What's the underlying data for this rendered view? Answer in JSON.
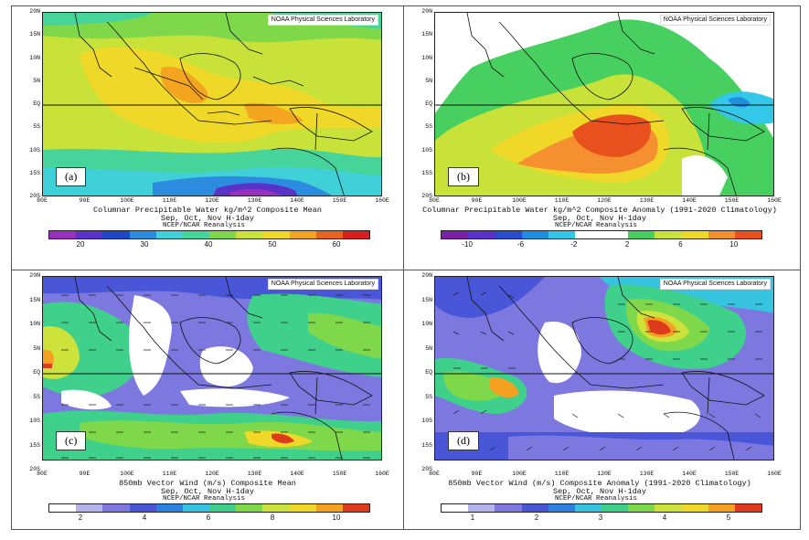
{
  "lat_labels": [
    "20N",
    "15N",
    "10N",
    "5N",
    "EQ",
    "5S",
    "10S",
    "15S",
    "20S"
  ],
  "lon_labels": [
    "80E",
    "90E",
    "100E",
    "110E",
    "120E",
    "130E",
    "140E",
    "150E",
    "160E"
  ],
  "source_text": "NOAA Physical Sciences Laboratory",
  "reanalysis_text": "NCEP/NCAR Reanalysis",
  "panels": [
    {
      "label": "(a)",
      "title1": "Columnar Precipitable Water kg/m^2 Composite Mean",
      "title2": "Sep, Oct, Nov H-1day",
      "ticks": [
        "20",
        "30",
        "40",
        "50",
        "60"
      ],
      "colors": [
        "#9b2fbf",
        "#5a32c8",
        "#2246c8",
        "#2c8de0",
        "#3fd0d8",
        "#46d49a",
        "#7fd84a",
        "#c8e23a",
        "#f0d828",
        "#f4a520",
        "#e8641e",
        "#d81e1e"
      ]
    },
    {
      "label": "(b)",
      "title1": "Columnar Precipitable Water kg/m^2 Composite Anomaly (1991-2020 Climatology)",
      "title2": "Sep, Oct, Nov H-1day",
      "ticks": [
        "-10",
        "-6",
        "-2",
        "2",
        "6",
        "10"
      ],
      "colors": [
        "#7a1fa8",
        "#5a32c8",
        "#2a4ad0",
        "#1e8fe0",
        "#33c7e8",
        "#ffffff",
        "#ffffff",
        "#47d060",
        "#c8e23a",
        "#f0d828",
        "#f49030",
        "#e8501e"
      ]
    },
    {
      "label": "(c)",
      "title1": "850mb Vector Wind (m/s) Composite Mean",
      "title2": "Sep, Oct, Nov H-1day",
      "ticks": [
        "2",
        "4",
        "6",
        "8",
        "10"
      ],
      "colors": [
        "#ffffff",
        "#b5b3ec",
        "#7d78e0",
        "#4a56d8",
        "#2c80e0",
        "#36c4e0",
        "#3fd08c",
        "#7fd84a",
        "#cde23a",
        "#f0d828",
        "#f4a020",
        "#e03a1e"
      ]
    },
    {
      "label": "(d)",
      "title1": "850mb Vector Wind (m/s) Composite Anomaly (1991-2020 Climatology)",
      "title2": "Sep, Oct, Nov H-1day",
      "ticks": [
        "1",
        "2",
        "3",
        "4",
        "5"
      ],
      "colors": [
        "#ffffff",
        "#b5b3ec",
        "#7d78e0",
        "#4a56d8",
        "#2c80e0",
        "#36c4e0",
        "#3fd08c",
        "#7fd84a",
        "#cde23a",
        "#f0d828",
        "#f4a020",
        "#e03a1e"
      ]
    }
  ]
}
